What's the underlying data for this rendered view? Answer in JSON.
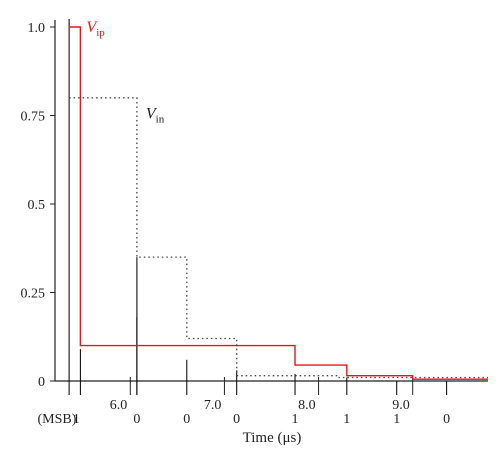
{
  "chart_data": {
    "type": "line",
    "xlabel": "Time (μs)",
    "ylabel": "",
    "xlim": [
      5.2,
      9.8
    ],
    "ylim": [
      0,
      1.0
    ],
    "yticks": [
      {
        "value": 0,
        "label": "0"
      },
      {
        "value": 0.25,
        "label": "0.25"
      },
      {
        "value": 0.5,
        "label": "0.5"
      },
      {
        "value": 0.75,
        "label": "0.75"
      },
      {
        "value": 1.0,
        "label": "1.0"
      }
    ],
    "xticks": [
      {
        "value": 6.0,
        "label": "6.0"
      },
      {
        "value": 7.0,
        "label": "7.0"
      },
      {
        "value": 8.0,
        "label": "8.0"
      },
      {
        "value": 9.0,
        "label": "9.0"
      }
    ],
    "series": [
      {
        "name": "V_ip",
        "label_main": "V",
        "label_sub": "ip",
        "color": "#e8141c",
        "style": "solid",
        "x": [
          5.35,
          5.35,
          5.47,
          5.47,
          7.75,
          7.75,
          8.3,
          8.3,
          9.0,
          9.0,
          9.8
        ],
        "y": [
          1.0,
          1.0,
          1.0,
          0.1,
          0.1,
          0.045,
          0.045,
          0.015,
          0.015,
          0.005,
          0.005
        ]
      },
      {
        "name": "V_in",
        "label_main": "V",
        "label_sub": "in",
        "color": "#444444",
        "style": "dotted",
        "x": [
          5.35,
          5.35,
          6.07,
          6.07,
          6.6,
          6.6,
          7.13,
          7.13,
          8.2,
          8.2,
          9.8
        ],
        "y": [
          0.8,
          0.8,
          0.8,
          0.35,
          0.35,
          0.12,
          0.12,
          0.015,
          0.015,
          0.01,
          0.01
        ]
      }
    ],
    "markers": [
      {
        "x": 5.35,
        "top": 1.0
      },
      {
        "x": 5.47,
        "top": 0.09
      },
      {
        "x": 6.07,
        "top": 0.35
      },
      {
        "x": 6.07,
        "top": 0.18
      },
      {
        "x": 6.6,
        "top": 0.06
      },
      {
        "x": 7.13,
        "top": 0.03
      },
      {
        "x": 7.75,
        "top": 0.02
      },
      {
        "x": 8.3,
        "top": 0.01
      },
      {
        "x": 8.83,
        "top": 0.0
      },
      {
        "x": 9.36,
        "top": 0.0
      }
    ],
    "bits_prefix": "(MSB)",
    "bits": [
      {
        "x": 5.47,
        "label": "1"
      },
      {
        "x": 6.07,
        "label": "0"
      },
      {
        "x": 6.6,
        "label": "0"
      },
      {
        "x": 7.13,
        "label": "0"
      },
      {
        "x": 7.75,
        "label": "1"
      },
      {
        "x": 8.3,
        "label": "1"
      },
      {
        "x": 8.83,
        "label": "1"
      },
      {
        "x": 9.36,
        "label": "0"
      }
    ]
  }
}
